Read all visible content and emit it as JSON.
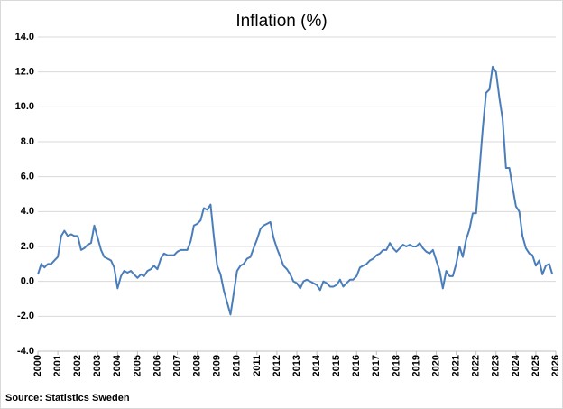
{
  "chart_data": {
    "type": "line",
    "title": "Inflation (%)",
    "source": "Source: Statistics Sweden",
    "series": [
      {
        "name": "Inflation",
        "color": "#4a7ebb",
        "x": [
          2000,
          2000.17,
          2000.33,
          2000.5,
          2000.67,
          2000.83,
          2001,
          2001.17,
          2001.33,
          2001.5,
          2001.67,
          2001.83,
          2002,
          2002.17,
          2002.33,
          2002.5,
          2002.67,
          2002.83,
          2003,
          2003.17,
          2003.33,
          2003.5,
          2003.67,
          2003.83,
          2004,
          2004.17,
          2004.33,
          2004.5,
          2004.67,
          2004.83,
          2005,
          2005.17,
          2005.33,
          2005.5,
          2005.67,
          2005.83,
          2006,
          2006.17,
          2006.33,
          2006.5,
          2006.67,
          2006.83,
          2007,
          2007.17,
          2007.33,
          2007.5,
          2007.67,
          2007.83,
          2008,
          2008.17,
          2008.33,
          2008.5,
          2008.67,
          2008.83,
          2009,
          2009.17,
          2009.33,
          2009.5,
          2009.67,
          2009.83,
          2010,
          2010.17,
          2010.33,
          2010.5,
          2010.67,
          2010.83,
          2011,
          2011.17,
          2011.33,
          2011.5,
          2011.67,
          2011.83,
          2012,
          2012.17,
          2012.33,
          2012.5,
          2012.67,
          2012.83,
          2013,
          2013.17,
          2013.33,
          2013.5,
          2013.67,
          2013.83,
          2014,
          2014.17,
          2014.33,
          2014.5,
          2014.67,
          2014.83,
          2015,
          2015.17,
          2015.33,
          2015.5,
          2015.67,
          2015.83,
          2016,
          2016.17,
          2016.33,
          2016.5,
          2016.67,
          2016.83,
          2017,
          2017.17,
          2017.33,
          2017.5,
          2017.67,
          2017.83,
          2018,
          2018.17,
          2018.33,
          2018.5,
          2018.67,
          2018.83,
          2019,
          2019.17,
          2019.33,
          2019.5,
          2019.67,
          2019.83,
          2020,
          2020.17,
          2020.33,
          2020.5,
          2020.67,
          2020.83,
          2021,
          2021.17,
          2021.33,
          2021.5,
          2021.67,
          2021.83,
          2022,
          2022.17,
          2022.33,
          2022.5,
          2022.67,
          2022.83,
          2023,
          2023.17,
          2023.33,
          2023.5,
          2023.67,
          2023.83,
          2024,
          2024.17,
          2024.33,
          2024.5,
          2024.67,
          2024.83,
          2025,
          2025.17,
          2025.33,
          2025.5,
          2025.67,
          2025.83
        ],
        "values": [
          0.4,
          1.0,
          0.8,
          1.0,
          1.0,
          1.2,
          1.4,
          2.6,
          2.9,
          2.6,
          2.7,
          2.6,
          2.6,
          1.8,
          1.9,
          2.1,
          2.2,
          3.2,
          2.5,
          1.8,
          1.4,
          1.3,
          1.2,
          0.8,
          -0.4,
          0.3,
          0.6,
          0.5,
          0.6,
          0.4,
          0.2,
          0.4,
          0.3,
          0.6,
          0.7,
          0.9,
          0.7,
          1.3,
          1.6,
          1.5,
          1.5,
          1.5,
          1.7,
          1.8,
          1.8,
          1.8,
          2.3,
          3.2,
          3.3,
          3.5,
          4.2,
          4.1,
          4.4,
          2.6,
          0.9,
          0.4,
          -0.5,
          -1.2,
          -1.9,
          -0.7,
          0.6,
          0.9,
          1.0,
          1.3,
          1.4,
          1.9,
          2.4,
          3.0,
          3.2,
          3.3,
          3.4,
          2.5,
          1.9,
          1.4,
          0.9,
          0.7,
          0.4,
          0.0,
          -0.1,
          -0.4,
          0.0,
          0.1,
          0.0,
          -0.1,
          -0.2,
          -0.5,
          0.0,
          -0.1,
          -0.3,
          -0.3,
          -0.2,
          0.1,
          -0.3,
          -0.1,
          0.1,
          0.1,
          0.3,
          0.8,
          0.9,
          1.0,
          1.2,
          1.3,
          1.5,
          1.6,
          1.8,
          1.8,
          2.2,
          1.9,
          1.7,
          1.9,
          2.1,
          2.0,
          2.1,
          2.0,
          2.0,
          2.2,
          1.9,
          1.7,
          1.6,
          1.8,
          1.2,
          0.6,
          -0.4,
          0.6,
          0.3,
          0.3,
          1.0,
          2.0,
          1.4,
          2.4,
          3.0,
          3.9,
          3.9,
          6.4,
          8.7,
          10.8,
          11.0,
          12.3,
          12.0,
          10.5,
          9.3,
          6.5,
          6.5,
          5.4,
          4.3,
          4.0,
          2.6,
          1.9,
          1.6,
          1.5,
          0.9,
          1.2,
          0.4,
          0.9,
          1.0,
          0.4
        ]
      }
    ],
    "xlim": [
      2000,
      2026
    ],
    "xticks": [
      2000,
      2001,
      2002,
      2003,
      2004,
      2005,
      2006,
      2007,
      2008,
      2009,
      2010,
      2011,
      2012,
      2013,
      2014,
      2015,
      2016,
      2017,
      2018,
      2019,
      2020,
      2021,
      2022,
      2023,
      2024,
      2025,
      2026
    ],
    "ylim": [
      -4,
      14
    ],
    "yticks": [
      {
        "value": -4,
        "label": "-4.0"
      },
      {
        "value": -2,
        "label": "-2.0"
      },
      {
        "value": 0,
        "label": "0.0"
      },
      {
        "value": 2,
        "label": "2.0"
      },
      {
        "value": 4,
        "label": "4.0"
      },
      {
        "value": 6,
        "label": "6.0"
      },
      {
        "value": 8,
        "label": "8.0"
      },
      {
        "value": 10,
        "label": "10.0"
      },
      {
        "value": 12,
        "label": "12.0"
      },
      {
        "value": 14,
        "label": "14.0"
      }
    ],
    "grid": true
  }
}
